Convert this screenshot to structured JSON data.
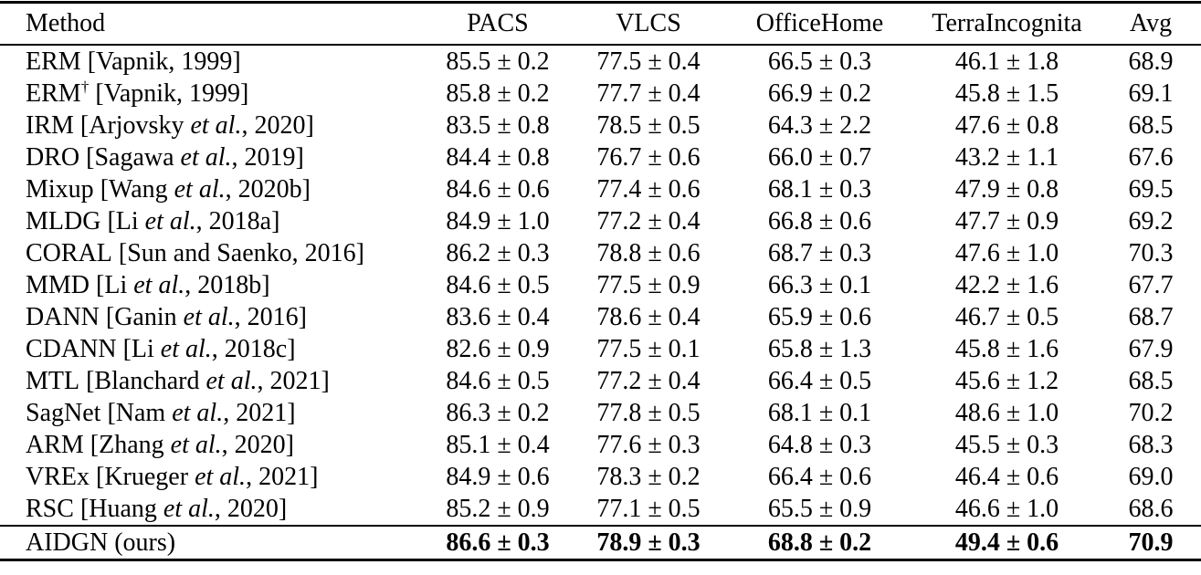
{
  "table": {
    "columns": [
      "Method",
      "PACS",
      "VLCS",
      "OfficeHome",
      "TerraIncognita",
      "Avg"
    ],
    "rows": [
      {
        "name": "ERM",
        "sup": "",
        "cite_pre": " [Vapnik, 1999]",
        "cite_italic": "",
        "cite_post": "",
        "values": [
          "85.5 ± 0.2",
          "77.5 ± 0.4",
          "66.5 ± 0.3",
          "46.1 ± 1.8",
          "68.9"
        ],
        "values_bold": false
      },
      {
        "name": "ERM",
        "sup": "†",
        "cite_pre": " [Vapnik, 1999]",
        "cite_italic": "",
        "cite_post": "",
        "values": [
          "85.8 ± 0.2",
          "77.7 ± 0.4",
          "66.9 ± 0.2",
          "45.8 ± 1.5",
          "69.1"
        ],
        "values_bold": false
      },
      {
        "name": "IRM",
        "sup": "",
        "cite_pre": " [Arjovsky ",
        "cite_italic": "et al.",
        "cite_post": ", 2020]",
        "values": [
          "83.5 ± 0.8",
          "78.5 ± 0.5",
          "64.3 ± 2.2",
          "47.6 ± 0.8",
          "68.5"
        ],
        "values_bold": false
      },
      {
        "name": "DRO",
        "sup": "",
        "cite_pre": " [Sagawa ",
        "cite_italic": "et al.",
        "cite_post": ", 2019]",
        "values": [
          "84.4 ± 0.8",
          "76.7 ± 0.6",
          "66.0 ± 0.7",
          "43.2 ± 1.1",
          "67.6"
        ],
        "values_bold": false
      },
      {
        "name": "Mixup",
        "sup": "",
        "cite_pre": " [Wang ",
        "cite_italic": "et al.",
        "cite_post": ", 2020b]",
        "values": [
          "84.6 ± 0.6",
          "77.4 ± 0.6",
          "68.1 ± 0.3",
          "47.9 ± 0.8",
          "69.5"
        ],
        "values_bold": false
      },
      {
        "name": "MLDG",
        "sup": "",
        "cite_pre": " [Li ",
        "cite_italic": "et al.",
        "cite_post": ", 2018a]",
        "values": [
          "84.9 ± 1.0",
          "77.2 ± 0.4",
          "66.8 ± 0.6",
          "47.7 ± 0.9",
          "69.2"
        ],
        "values_bold": false
      },
      {
        "name": "CORAL",
        "sup": "",
        "cite_pre": " [Sun and Saenko, 2016]",
        "cite_italic": "",
        "cite_post": "",
        "values": [
          "86.2 ± 0.3",
          "78.8 ± 0.6",
          "68.7 ± 0.3",
          "47.6 ± 1.0",
          "70.3"
        ],
        "values_bold": false
      },
      {
        "name": "MMD",
        "sup": "",
        "cite_pre": " [Li ",
        "cite_italic": "et al.",
        "cite_post": ", 2018b]",
        "values": [
          "84.6 ± 0.5",
          "77.5 ± 0.9",
          "66.3 ± 0.1",
          "42.2 ± 1.6",
          "67.7"
        ],
        "values_bold": false
      },
      {
        "name": "DANN",
        "sup": "",
        "cite_pre": " [Ganin ",
        "cite_italic": "et al.",
        "cite_post": ", 2016]",
        "values": [
          "83.6 ± 0.4",
          "78.6 ± 0.4",
          "65.9 ± 0.6",
          "46.7 ± 0.5",
          "68.7"
        ],
        "values_bold": false
      },
      {
        "name": "CDANN",
        "sup": "",
        "cite_pre": " [Li ",
        "cite_italic": "et al.",
        "cite_post": ", 2018c]",
        "values": [
          "82.6 ± 0.9",
          "77.5 ± 0.1",
          "65.8 ± 1.3",
          "45.8 ± 1.6",
          "67.9"
        ],
        "values_bold": false
      },
      {
        "name": "MTL",
        "sup": "",
        "cite_pre": " [Blanchard ",
        "cite_italic": "et al.",
        "cite_post": ", 2021]",
        "values": [
          "84.6 ± 0.5",
          "77.2 ± 0.4",
          "66.4 ± 0.5",
          "45.6 ± 1.2",
          "68.5"
        ],
        "values_bold": false
      },
      {
        "name": "SagNet",
        "sup": "",
        "cite_pre": " [Nam ",
        "cite_italic": "et al.",
        "cite_post": ", 2021]",
        "values": [
          "86.3 ± 0.2",
          "77.8 ± 0.5",
          "68.1 ± 0.1",
          "48.6 ± 1.0",
          "70.2"
        ],
        "values_bold": false
      },
      {
        "name": "ARM",
        "sup": "",
        "cite_pre": " [Zhang ",
        "cite_italic": "et al.",
        "cite_post": ", 2020]",
        "values": [
          "85.1 ± 0.4",
          "77.6 ± 0.3",
          "64.8 ± 0.3",
          "45.5 ± 0.3",
          "68.3"
        ],
        "values_bold": false
      },
      {
        "name": "VREx",
        "sup": "",
        "cite_pre": " [Krueger ",
        "cite_italic": "et al.",
        "cite_post": ", 2021]",
        "values": [
          "84.9 ± 0.6",
          "78.3 ± 0.2",
          "66.4 ± 0.6",
          "46.4 ± 0.6",
          "69.0"
        ],
        "values_bold": false
      },
      {
        "name": "RSC",
        "sup": "",
        "cite_pre": " [Huang ",
        "cite_italic": "et al.",
        "cite_post": ", 2020]",
        "values": [
          "85.2 ± 0.9",
          "77.1 ± 0.5",
          "65.5 ± 0.9",
          "46.6 ± 1.0",
          "68.6"
        ],
        "values_bold": false
      },
      {
        "name": "AIDGN",
        "sup": "",
        "cite_pre": " (ours)",
        "cite_italic": "",
        "cite_post": "",
        "values": [
          "86.6 ± 0.3",
          "78.9 ± 0.3",
          "68.8 ± 0.2",
          "49.4 ± 0.6",
          "70.9"
        ],
        "values_bold": true
      }
    ]
  }
}
